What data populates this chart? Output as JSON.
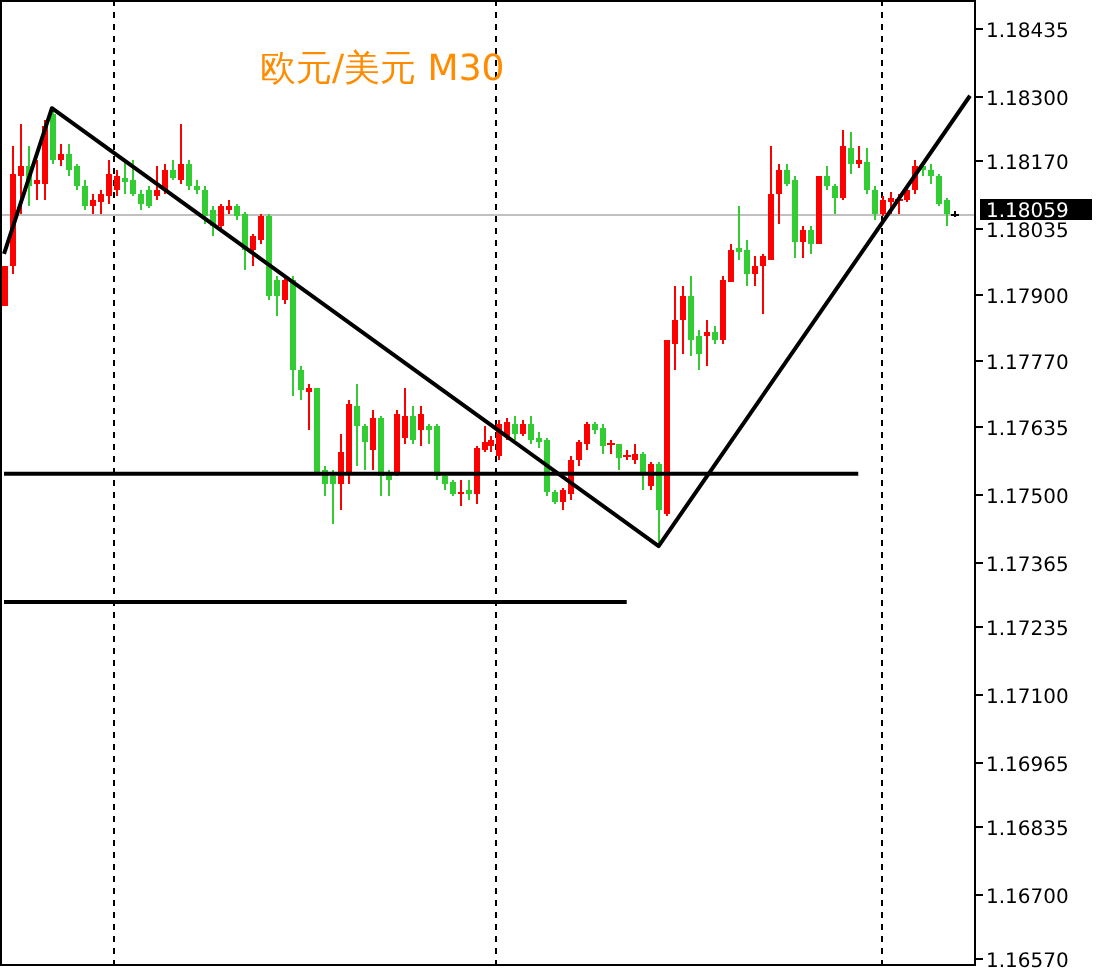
{
  "chart_data": {
    "type": "candlestick",
    "title": "欧元/美元 M30",
    "categories": [
      null,
      null,
      null,
      null,
      null,
      null,
      null,
      null,
      null,
      null,
      null,
      null,
      null,
      null,
      null,
      null,
      null,
      null,
      null,
      null,
      null,
      null,
      null,
      null,
      null,
      null,
      null,
      null,
      null,
      null,
      null,
      null,
      null,
      null,
      null,
      null,
      null,
      null,
      null,
      null,
      null,
      null,
      null,
      null,
      null,
      null,
      null,
      null,
      null,
      null,
      null,
      null,
      null,
      null,
      null,
      null,
      null,
      null,
      null,
      null,
      null,
      null,
      null,
      null,
      null,
      null,
      null,
      null,
      null,
      null,
      null,
      null,
      null,
      null,
      null,
      null,
      null,
      null,
      null,
      null,
      null,
      null,
      null,
      null,
      null,
      null,
      null,
      null,
      null,
      null,
      null,
      null,
      null,
      null,
      null,
      null,
      null,
      null,
      null,
      null,
      null,
      null,
      null,
      null,
      null,
      null,
      null,
      null,
      null,
      null,
      null,
      null,
      null,
      null,
      null,
      null,
      null,
      null,
      null,
      null,
      null,
      null
    ],
    "ohlc": [
      [
        1.17878,
        1.17958,
        1.17878,
        1.17958
      ],
      [
        1.17958,
        1.18198,
        1.17942,
        1.18142
      ],
      [
        1.18138,
        1.18242,
        1.18062,
        1.18158
      ],
      [
        1.18158,
        1.18198,
        1.18078,
        1.18118
      ],
      [
        1.18122,
        1.1817,
        1.1809,
        1.1813
      ],
      [
        1.18122,
        1.1825,
        1.1809,
        1.18238
      ],
      [
        1.18262,
        1.1827,
        1.18162,
        1.1817
      ],
      [
        1.1817,
        1.18202,
        1.18158,
        1.18182
      ],
      [
        1.18182,
        1.18202,
        1.18138,
        1.1815
      ],
      [
        1.18158,
        1.18162,
        1.1811,
        1.18118
      ],
      [
        1.18118,
        1.1813,
        1.1807,
        1.18078
      ],
      [
        1.18078,
        1.18102,
        1.18062,
        1.1809
      ],
      [
        1.18086,
        1.1811,
        1.18062,
        1.18102
      ],
      [
        1.18098,
        1.1817,
        1.18082,
        1.18142
      ],
      [
        1.1811,
        1.1815,
        1.18098,
        1.18138
      ],
      [
        1.18134,
        1.1817,
        1.18102,
        1.18126
      ],
      [
        1.1813,
        1.1817,
        1.18098,
        1.18102
      ],
      [
        1.18102,
        1.1811,
        1.1807,
        1.18082
      ],
      [
        1.1811,
        1.18118,
        1.18074,
        1.18078
      ],
      [
        1.18098,
        1.18158,
        1.1809,
        1.1811
      ],
      [
        1.1811,
        1.18162,
        1.18102,
        1.1815
      ],
      [
        1.1815,
        1.1817,
        1.1813,
        1.18134
      ],
      [
        1.1813,
        1.18242,
        1.18122,
        1.18162
      ],
      [
        1.18162,
        1.1817,
        1.1811,
        1.18118
      ],
      [
        1.18118,
        1.1813,
        1.18102,
        1.1811
      ],
      [
        1.1811,
        1.18118,
        1.18042,
        1.18058
      ],
      [
        1.1807,
        1.18078,
        1.18018,
        1.18038
      ],
      [
        1.18038,
        1.18082,
        1.1803,
        1.18078
      ],
      [
        1.1807,
        1.1809,
        1.18062,
        1.18078
      ],
      [
        1.18078,
        1.18082,
        1.1805,
        1.18058
      ],
      [
        1.18062,
        1.18066,
        1.1795,
        1.1799
      ],
      [
        1.1799,
        1.18022,
        1.17958,
        1.18018
      ],
      [
        1.1801,
        1.18062,
        1.18002,
        1.18058
      ],
      [
        1.18058,
        1.18062,
        1.1789,
        1.17898
      ],
      [
        1.1793,
        1.17938,
        1.17857,
        1.17898
      ],
      [
        1.1789,
        1.17938,
        1.17882,
        1.1793
      ],
      [
        1.1793,
        1.17938,
        1.17697,
        1.17749
      ],
      [
        1.17749,
        1.17757,
        1.17689,
        1.17709
      ],
      [
        1.17705,
        1.17721,
        1.17629,
        1.17713
      ],
      [
        1.17713,
        1.17713,
        1.17541,
        1.17545
      ],
      [
        1.17549,
        1.17557,
        1.17496,
        1.17521
      ],
      [
        1.17537,
        1.17549,
        1.1744,
        1.17521
      ],
      [
        1.17521,
        1.17621,
        1.17468,
        1.17585
      ],
      [
        1.17541,
        1.17689,
        1.17521,
        1.17681
      ],
      [
        1.17677,
        1.17721,
        1.17557,
        1.17637
      ],
      [
        1.17637,
        1.17641,
        1.17549,
        1.17605
      ],
      [
        1.17589,
        1.17669,
        1.17549,
        1.17653
      ],
      [
        1.17653,
        1.17657,
        1.17496,
        1.17537
      ],
      [
        1.17545,
        1.17549,
        1.17496,
        1.17529
      ],
      [
        1.17545,
        1.17669,
        1.17537,
        1.17661
      ],
      [
        1.17613,
        1.17713,
        1.17601,
        1.17657
      ],
      [
        1.17657,
        1.17677,
        1.17601,
        1.17609
      ],
      [
        1.17629,
        1.17677,
        1.17597,
        1.17661
      ],
      [
        1.17637,
        1.17641,
        1.17601,
        1.17629
      ],
      [
        1.17637,
        1.17641,
        1.17529,
        1.17537
      ],
      [
        1.17537,
        1.17541,
        1.17509,
        1.17521
      ],
      [
        1.17525,
        1.17529,
        1.17496,
        1.175
      ],
      [
        1.175,
        1.17529,
        1.17476,
        1.17505
      ],
      [
        1.17509,
        1.17529,
        1.17488,
        1.175
      ],
      [
        1.175,
        1.17597,
        1.1748,
        1.17593
      ],
      [
        1.17589,
        1.17637,
        1.17585,
        1.17605
      ],
      [
        1.17597,
        1.17617,
        1.17585,
        1.17609
      ],
      [
        1.17577,
        1.17649,
        1.17569,
        1.17641
      ],
      [
        1.17617,
        1.17653,
        1.17609,
        1.17645
      ],
      [
        1.17641,
        1.17657,
        1.17609,
        1.17621
      ],
      [
        1.17621,
        1.17649,
        1.17617,
        1.17641
      ],
      [
        1.17641,
        1.17657,
        1.17601,
        1.17609
      ],
      [
        1.17613,
        1.17625,
        1.17593,
        1.17605
      ],
      [
        1.17609,
        1.17613,
        1.17496,
        1.17505
      ],
      [
        1.17505,
        1.17509,
        1.1748,
        1.17484
      ],
      [
        1.17484,
        1.17513,
        1.17468,
        1.17509
      ],
      [
        1.175,
        1.17577,
        1.17488,
        1.17569
      ],
      [
        1.17569,
        1.17609,
        1.17557,
        1.17605
      ],
      [
        1.17601,
        1.17645,
        1.17589,
        1.17641
      ],
      [
        1.17641,
        1.17645,
        1.17621,
        1.17629
      ],
      [
        1.17633,
        1.17641,
        1.17581,
        1.17597
      ],
      [
        1.17597,
        1.17609,
        1.17581,
        1.17601
      ],
      [
        1.17601,
        1.17601,
        1.17549,
        1.17573
      ],
      [
        1.17573,
        1.17589,
        1.17569,
        1.17577
      ],
      [
        1.17569,
        1.17601,
        1.17561,
        1.17581
      ],
      [
        1.17581,
        1.17585,
        1.17509,
        1.17541
      ],
      [
        1.17517,
        1.17565,
        1.17509,
        1.17561
      ],
      [
        1.17561,
        1.17565,
        1.174,
        1.17468
      ],
      [
        1.1746,
        1.17809,
        1.17456,
        1.17809
      ],
      [
        1.17801,
        1.17918,
        1.17749,
        1.17849
      ],
      [
        1.17849,
        1.17918,
        1.17781,
        1.17898
      ],
      [
        1.17898,
        1.17938,
        1.17777,
        1.17809
      ],
      [
        1.17817,
        1.17829,
        1.17749,
        1.17781
      ],
      [
        1.17817,
        1.17849,
        1.17757,
        1.17825
      ],
      [
        1.17825,
        1.17837,
        1.17801,
        1.17809
      ],
      [
        1.17809,
        1.17938,
        1.17801,
        1.1793
      ],
      [
        1.17926,
        1.18002,
        1.17926,
        1.1799
      ],
      [
        1.17994,
        1.18078,
        1.1797,
        1.17986
      ],
      [
        1.1799,
        1.1801,
        1.17918,
        1.17942
      ],
      [
        1.17942,
        1.17978,
        1.17918,
        1.17958
      ],
      [
        1.17958,
        1.17982,
        1.17861,
        1.17978
      ],
      [
        1.1797,
        1.18198,
        1.1797,
        1.18102
      ],
      [
        1.18102,
        1.18162,
        1.18042,
        1.1815
      ],
      [
        1.1815,
        1.18162,
        1.18118,
        1.18122
      ],
      [
        1.1813,
        1.18138,
        1.17974,
        1.18006
      ],
      [
        1.18006,
        1.18038,
        1.17974,
        1.1803
      ],
      [
        1.1803,
        1.18038,
        1.17982,
        1.18002
      ],
      [
        1.18002,
        1.18138,
        1.18002,
        1.18138
      ],
      [
        1.18138,
        1.18158,
        1.1811,
        1.18118
      ],
      [
        1.18118,
        1.18122,
        1.18062,
        1.18094
      ],
      [
        1.18094,
        1.1823,
        1.1809,
        1.18198
      ],
      [
        1.18194,
        1.18226,
        1.18142,
        1.18162
      ],
      [
        1.18162,
        1.18198,
        1.18154,
        1.1817
      ],
      [
        1.18166,
        1.18194,
        1.18102,
        1.1811
      ],
      [
        1.1811,
        1.18118,
        1.1805,
        1.18062
      ],
      [
        1.18062,
        1.18098,
        1.18058,
        1.1809
      ],
      [
        1.18086,
        1.18106,
        1.18062,
        1.18094
      ],
      [
        1.18086,
        1.18102,
        1.18062,
        1.1809
      ],
      [
        1.1809,
        1.18118,
        1.18086,
        1.1811
      ],
      [
        1.1811,
        1.1817,
        1.18102,
        1.18158
      ],
      [
        1.18158,
        1.18162,
        1.18138,
        1.1815
      ],
      [
        1.1815,
        1.18162,
        1.18122,
        1.18138
      ],
      [
        1.18138,
        1.18142,
        1.18078,
        1.18082
      ],
      [
        1.1809,
        1.18094,
        1.18038,
        1.18062
      ],
      [
        1.18059,
        1.18067,
        1.18055,
        1.18059
      ],
      null,
      null
    ],
    "colors": [
      "#ff0000",
      "#ff0000",
      "#ff0000",
      "#32cd32",
      "#ff0000",
      "#ff0000",
      "#32cd32",
      "#ff0000",
      "#32cd32",
      "#32cd32",
      "#32cd32",
      "#ff0000",
      "#ff0000",
      "#ff0000",
      "#ff0000",
      "#32cd32",
      "#32cd32",
      "#32cd32",
      "#32cd32",
      "#ff0000",
      "#ff0000",
      "#32cd32",
      "#ff0000",
      "#32cd32",
      "#32cd32",
      "#32cd32",
      "#32cd32",
      "#ff0000",
      "#ff0000",
      "#32cd32",
      "#32cd32",
      "#ff0000",
      "#ff0000",
      "#32cd32",
      "#32cd32",
      "#ff0000",
      "#32cd32",
      "#32cd32",
      "#ff0000",
      "#32cd32",
      "#32cd32",
      "#32cd32",
      "#ff0000",
      "#ff0000",
      "#32cd32",
      "#32cd32",
      "#ff0000",
      "#32cd32",
      "#32cd32",
      "#ff0000",
      "#ff0000",
      "#32cd32",
      "#ff0000",
      "#32cd32",
      "#32cd32",
      "#32cd32",
      "#32cd32",
      "#ff0000",
      "#32cd32",
      "#ff0000",
      "#ff0000",
      "#ff0000",
      "#ff0000",
      "#ff0000",
      "#32cd32",
      "#ff0000",
      "#32cd32",
      "#32cd32",
      "#32cd32",
      "#32cd32",
      "#ff0000",
      "#ff0000",
      "#ff0000",
      "#ff0000",
      "#32cd32",
      "#32cd32",
      "#ff0000",
      "#32cd32",
      "#ff0000",
      "#ff0000",
      "#32cd32",
      "#ff0000",
      "#32cd32",
      "#ff0000",
      "#ff0000",
      "#ff0000",
      "#32cd32",
      "#32cd32",
      "#ff0000",
      "#32cd32",
      "#ff0000",
      "#ff0000",
      "#32cd32",
      "#32cd32",
      "#ff0000",
      "#ff0000",
      "#ff0000",
      "#ff0000",
      "#32cd32",
      "#32cd32",
      "#ff0000",
      "#32cd32",
      "#ff0000",
      "#32cd32",
      "#32cd32",
      "#ff0000",
      "#32cd32",
      "#ff0000",
      "#32cd32",
      "#32cd32",
      "#ff0000",
      "#ff0000",
      "#ff0000",
      "#ff0000",
      "#ff0000",
      "#32cd32",
      "#32cd32",
      "#32cd32",
      "#32cd32",
      "#000000",
      null,
      null
    ],
    "series": [
      {
        "type": "line",
        "color": "#000000",
        "values": [
          1.17982,
          null,
          null,
          null,
          null,
          null,
          1.18274,
          null,
          null,
          null,
          null,
          null,
          null,
          null,
          null,
          null,
          null,
          null,
          null,
          null,
          null,
          null,
          null,
          null,
          null,
          null,
          null,
          null,
          null,
          null,
          null,
          null,
          null,
          null,
          null,
          null,
          null,
          null,
          null,
          null,
          null,
          null,
          null,
          null,
          null,
          null,
          null,
          null,
          null,
          null,
          null,
          null,
          null,
          null,
          null,
          null,
          null,
          null,
          null,
          null,
          null,
          null,
          null,
          null,
          null,
          null,
          null,
          null,
          null,
          null,
          null,
          null,
          null,
          null,
          null,
          null,
          null,
          null,
          null,
          null,
          null,
          null,
          1.17396,
          null,
          null,
          null,
          null,
          null,
          null,
          null,
          null,
          null,
          null,
          null,
          null,
          null,
          null,
          null,
          null,
          null,
          null,
          null,
          null,
          null,
          null,
          null,
          null,
          null,
          null,
          null,
          null,
          null,
          null,
          null,
          null,
          null,
          null,
          null,
          null,
          null,
          null,
          1.18299
        ]
      },
      {
        "type": "line",
        "color": "#000000",
        "values": [
          1.17541,
          null,
          null,
          null,
          null,
          null,
          null,
          null,
          null,
          null,
          null,
          null,
          null,
          null,
          null,
          null,
          null,
          null,
          null,
          null,
          null,
          null,
          null,
          null,
          null,
          null,
          null,
          null,
          null,
          null,
          null,
          null,
          null,
          null,
          null,
          null,
          null,
          null,
          null,
          null,
          null,
          null,
          null,
          null,
          null,
          null,
          null,
          null,
          null,
          null,
          null,
          null,
          null,
          null,
          null,
          null,
          null,
          null,
          null,
          null,
          null,
          null,
          null,
          null,
          null,
          null,
          null,
          null,
          null,
          null,
          null,
          null,
          null,
          null,
          null,
          null,
          null,
          null,
          null,
          null,
          null,
          null,
          null,
          null,
          null,
          null,
          null,
          null,
          null,
          null,
          null,
          null,
          null,
          null,
          null,
          null,
          null,
          null,
          null,
          null,
          null,
          null,
          null,
          null,
          null,
          null,
          null,
          1.17541,
          null,
          null,
          null,
          null,
          null,
          null,
          null,
          null,
          null,
          null,
          null,
          null,
          null,
          null
        ]
      },
      {
        "type": "line",
        "color": "#000000",
        "values": [
          1.17284,
          null,
          null,
          null,
          null,
          null,
          null,
          null,
          null,
          null,
          null,
          null,
          null,
          null,
          null,
          null,
          null,
          null,
          null,
          null,
          null,
          null,
          null,
          null,
          null,
          null,
          null,
          null,
          null,
          null,
          null,
          null,
          null,
          null,
          null,
          null,
          null,
          null,
          null,
          null,
          null,
          null,
          null,
          null,
          null,
          null,
          null,
          null,
          null,
          null,
          null,
          null,
          null,
          null,
          null,
          null,
          null,
          null,
          null,
          null,
          null,
          null,
          null,
          null,
          null,
          null,
          null,
          null,
          null,
          null,
          null,
          null,
          null,
          null,
          null,
          null,
          null,
          null,
          1.17284,
          null,
          null,
          null,
          null,
          null,
          null,
          null,
          null,
          null,
          null,
          null,
          null,
          null,
          null,
          null,
          null,
          null,
          null,
          null,
          null,
          null,
          null,
          null,
          null,
          null,
          null,
          null,
          null,
          null,
          null,
          null,
          null,
          null,
          null,
          null,
          null,
          null,
          null,
          null,
          null,
          null,
          null,
          null
        ]
      }
    ],
    "ylim": [
      1.16558,
      1.18491
    ],
    "yticks": [
      {
        "value": 1.18435,
        "label": "1.18435"
      },
      {
        "value": 1.183,
        "label": "1.18300"
      },
      {
        "value": 1.1817,
        "label": "1.18170"
      },
      {
        "value": 1.18035,
        "label": "1.18035"
      },
      {
        "value": 1.179,
        "label": "1.17900"
      },
      {
        "value": 1.1777,
        "label": "1.17770"
      },
      {
        "value": 1.17635,
        "label": "1.17635"
      },
      {
        "value": 1.175,
        "label": "1.17500"
      },
      {
        "value": 1.17365,
        "label": "1.17365"
      },
      {
        "value": 1.17235,
        "label": "1.17235"
      },
      {
        "value": 1.171,
        "label": "1.17100"
      },
      {
        "value": 1.16965,
        "label": "1.16965"
      },
      {
        "value": 1.16835,
        "label": "1.16835"
      },
      {
        "value": 1.167,
        "label": "1.16700"
      },
      {
        "value": 1.1657,
        "label": "1.16570"
      }
    ],
    "ref_lines": [
      {
        "axis": "y",
        "value": 1.18059,
        "label": "1.18059",
        "color": "#c0c0c0"
      }
    ],
    "grid": false
  }
}
